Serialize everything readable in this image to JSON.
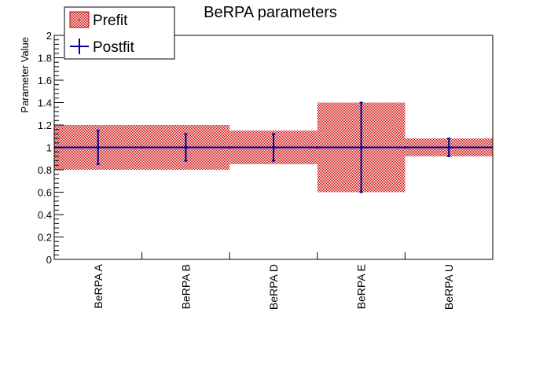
{
  "chart_data": {
    "type": "bar",
    "title": "BeRPA parameters",
    "ylabel": "Parameter Value",
    "xlabel": "",
    "ylim": [
      0,
      2
    ],
    "y_ticks": [
      "0",
      "0.2",
      "0.4",
      "0.6",
      "0.8",
      "1",
      "1.2",
      "1.4",
      "1.6",
      "1.8",
      "2"
    ],
    "categories": [
      "BeRPA A",
      "BeRPA B",
      "BeRPA D",
      "BeRPA E",
      "BeRPA U"
    ],
    "series": [
      {
        "name": "Prefit",
        "style": "error-band",
        "color": "#cc0000",
        "values": [
          1,
          1,
          1,
          1,
          1
        ],
        "errors": [
          0.2,
          0.2,
          0.15,
          0.4,
          0.08
        ]
      },
      {
        "name": "Postfit",
        "style": "markers-with-errorbars",
        "color": "#000099",
        "values": [
          1,
          1,
          1,
          1,
          1
        ],
        "errors": [
          0.15,
          0.12,
          0.12,
          0.4,
          0.08
        ]
      }
    ],
    "legend_position": "top-left",
    "grid": false
  }
}
